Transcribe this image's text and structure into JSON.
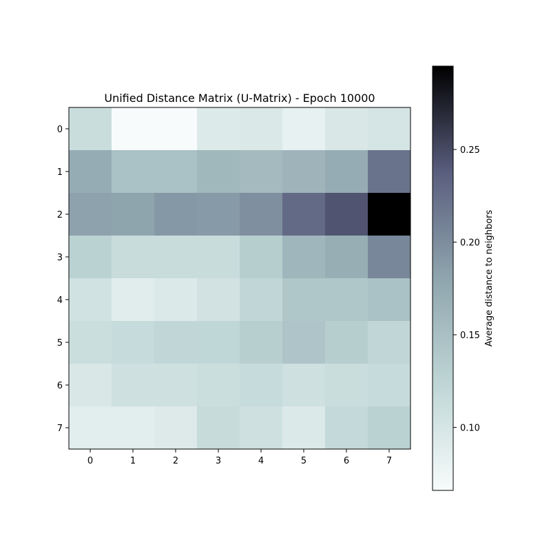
{
  "chart_data": {
    "type": "heatmap",
    "title": "Unified Distance Matrix (U-Matrix) - Epoch 10000",
    "x_ticks": [
      "0",
      "1",
      "2",
      "3",
      "4",
      "5",
      "6",
      "7"
    ],
    "y_ticks": [
      "0",
      "1",
      "2",
      "3",
      "4",
      "5",
      "6",
      "7"
    ],
    "values": [
      [
        0.112,
        0.066,
        0.066,
        0.093,
        0.096,
        0.082,
        0.097,
        0.101
      ],
      [
        0.172,
        0.148,
        0.148,
        0.16,
        0.156,
        0.163,
        0.172,
        0.221
      ],
      [
        0.183,
        0.18,
        0.191,
        0.189,
        0.198,
        0.228,
        0.244,
        0.295
      ],
      [
        0.128,
        0.114,
        0.114,
        0.114,
        0.133,
        0.161,
        0.17,
        0.205
      ],
      [
        0.105,
        0.088,
        0.094,
        0.104,
        0.121,
        0.141,
        0.141,
        0.148
      ],
      [
        0.111,
        0.116,
        0.121,
        0.122,
        0.132,
        0.144,
        0.133,
        0.121
      ],
      [
        0.097,
        0.108,
        0.108,
        0.111,
        0.116,
        0.108,
        0.113,
        0.116
      ],
      [
        0.087,
        0.087,
        0.092,
        0.115,
        0.108,
        0.094,
        0.118,
        0.128
      ]
    ],
    "color_range": [
      0.066,
      0.295
    ],
    "colormap": "bone_r",
    "colorbar": {
      "label": "Average distance to neighbors",
      "ticks": [
        0.1,
        0.15,
        0.2,
        0.25
      ],
      "tick_labels": [
        "0.10",
        "0.15",
        "0.20",
        "0.25"
      ]
    },
    "grid": false
  }
}
